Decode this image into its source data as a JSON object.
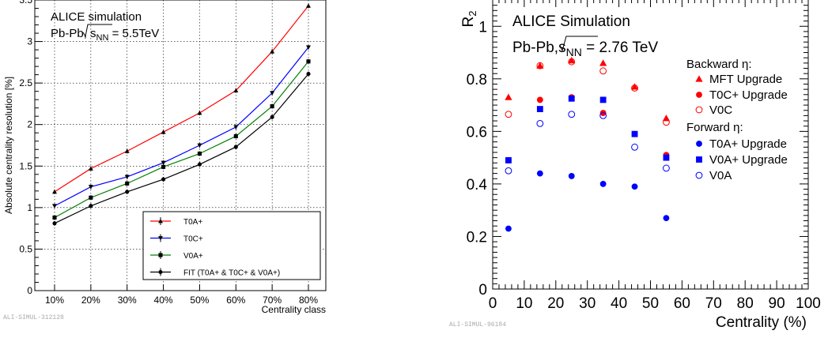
{
  "chart_data": [
    {
      "type": "line",
      "title": "ALICE simulation",
      "subtitle_prefix": "Pb-Pb, ",
      "subtitle_sqrt": "s",
      "subtitle_sub": "NN",
      "subtitle_suffix": " = 5.5TeV",
      "ylabel": "Absolute centrality resolution [%]",
      "xlabel": "Centrality class",
      "categories": [
        "10%",
        "20%",
        "30%",
        "40%",
        "50%",
        "60%",
        "70%",
        "80%"
      ],
      "yticks": [
        "0",
        "0.5",
        "1",
        "1.5",
        "2",
        "2.5",
        "3",
        "3.5"
      ],
      "ylim": [
        0,
        3.5
      ],
      "grid": true,
      "legend_position": "bottom-right",
      "series": [
        {
          "name": "T0A+",
          "color": "#ff0000",
          "marker": "triangle-up",
          "values": [
            1.19,
            1.47,
            1.68,
            1.91,
            2.14,
            2.41,
            2.88,
            3.43
          ]
        },
        {
          "name": "T0C+",
          "color": "#0000ff",
          "marker": "triangle-down",
          "values": [
            1.02,
            1.25,
            1.37,
            1.54,
            1.75,
            1.97,
            2.38,
            2.93
          ]
        },
        {
          "name": "V0A+",
          "color": "#008000",
          "marker": "square",
          "values": [
            0.88,
            1.12,
            1.29,
            1.49,
            1.65,
            1.86,
            2.22,
            2.76
          ]
        },
        {
          "name": "FIT (T0A+ & T0C+ & V0A+)",
          "color": "#000000",
          "marker": "circle",
          "values": [
            0.81,
            1.02,
            1.19,
            1.34,
            1.52,
            1.73,
            2.09,
            2.61
          ]
        }
      ],
      "footer_id": "ALI-SIMUL-312128"
    },
    {
      "type": "scatter",
      "title": "ALICE Simulation",
      "subtitle_prefix": "Pb-Pb,",
      "subtitle_sqrt": "s",
      "subtitle_sub": "NN",
      "subtitle_suffix": " = 2.76 TeV",
      "ylabel": "R",
      "ylabel_sub": "2",
      "xlabel": "Centrality (%)",
      "xlim": [
        0,
        100
      ],
      "ylim": [
        0,
        1.1
      ],
      "xticks": [
        "0",
        "10",
        "20",
        "30",
        "40",
        "50",
        "60",
        "70",
        "80",
        "90",
        "100"
      ],
      "yticks": [
        "0",
        "0.2",
        "0.4",
        "0.6",
        "0.8",
        "1"
      ],
      "grid": false,
      "legend_position": "top-right",
      "legend_heading_backward": "Backward η:",
      "legend_heading_forward": "Forward η:",
      "x": [
        5,
        15,
        25,
        35,
        45,
        55
      ],
      "series": [
        {
          "name": "MFT Upgrade",
          "group": "backward",
          "color": "#ff0000",
          "marker": "triangle-up",
          "values": [
            0.73,
            0.85,
            0.87,
            0.86,
            0.77,
            0.65
          ]
        },
        {
          "name": "T0C+ Upgrade",
          "group": "backward",
          "color": "#ff0000",
          "marker": "circle",
          "values": [
            0.49,
            0.72,
            0.73,
            0.67,
            0.59,
            0.51
          ]
        },
        {
          "name": "V0C",
          "group": "backward",
          "color": "#ff0000",
          "marker": "open-circle",
          "values": [
            0.665,
            0.85,
            0.865,
            0.83,
            0.765,
            0.635
          ]
        },
        {
          "name": "T0A+ Upgrade",
          "group": "forward",
          "color": "#0000ff",
          "marker": "circle",
          "values": [
            0.23,
            0.44,
            0.43,
            0.4,
            0.39,
            0.27
          ]
        },
        {
          "name": "V0A+ Upgrade",
          "group": "forward",
          "color": "#0000ff",
          "marker": "square",
          "values": [
            0.49,
            0.685,
            0.725,
            0.72,
            0.59,
            0.5
          ]
        },
        {
          "name": "V0A",
          "group": "forward",
          "color": "#0000ff",
          "marker": "open-circle",
          "values": [
            0.45,
            0.63,
            0.665,
            0.66,
            0.54,
            0.46
          ]
        }
      ],
      "footer_id": "ALI-SIMUL-96184"
    }
  ]
}
